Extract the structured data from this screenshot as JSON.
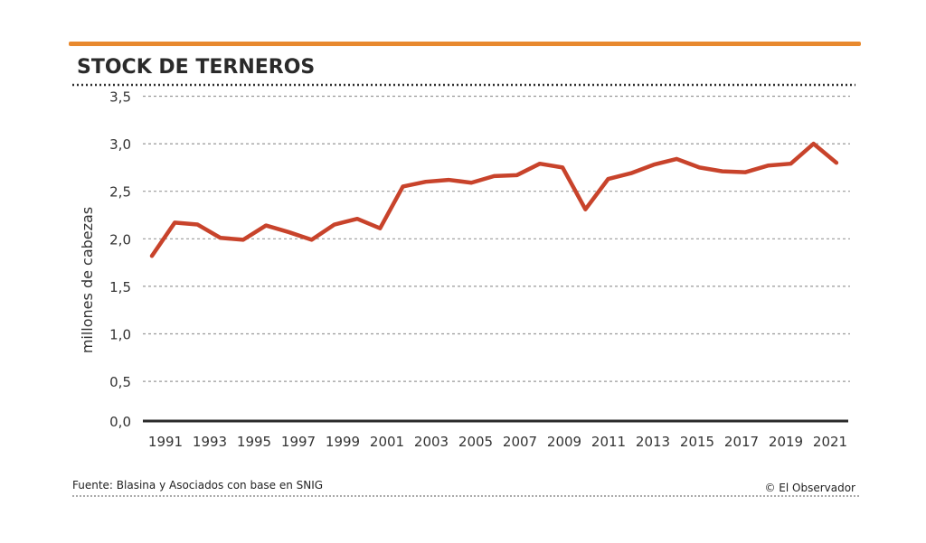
{
  "title": "STOCK DE TERNEROS",
  "source": "Fuente: Blasina y Asociados con base en SNIG",
  "credit": "© El Observador",
  "colors": {
    "accent_bar": "#e8892e",
    "line": "#c8432b",
    "text": "#2a2a2a"
  },
  "chart_data": {
    "type": "line",
    "title": "STOCK DE TERNEROS",
    "ylabel": "millones de cabezas",
    "xlabel": "",
    "ylim": [
      0,
      3.5
    ],
    "yticks": [
      "0,0",
      "0,5",
      "1,0",
      "1,5",
      "2,0",
      "2,5",
      "3,0",
      "3,5"
    ],
    "ytick_values": [
      0,
      0.5,
      1,
      1.5,
      2,
      2.5,
      3,
      3.5
    ],
    "xticks": [
      "1991",
      "1993",
      "1995",
      "1997",
      "1999",
      "2001",
      "2003",
      "2005",
      "2007",
      "2009",
      "2011",
      "2013",
      "2015",
      "2017",
      "2019",
      "2021"
    ],
    "grid": true,
    "x": [
      1991,
      1992,
      1993,
      1994,
      1995,
      1996,
      1997,
      1998,
      1999,
      2000,
      2001,
      2002,
      2003,
      2004,
      2005,
      2006,
      2007,
      2008,
      2009,
      2010,
      2011,
      2012,
      2013,
      2014,
      2015,
      2016,
      2017,
      2018,
      2019,
      2020,
      2021
    ],
    "series": [
      {
        "values": [
          1.82,
          2.17,
          2.15,
          2.01,
          1.99,
          2.14,
          2.07,
          1.99,
          2.15,
          2.21,
          2.11,
          2.55,
          2.6,
          2.62,
          2.59,
          2.66,
          2.67,
          2.79,
          2.75,
          2.31,
          2.63,
          2.69,
          2.78,
          2.84,
          2.75,
          2.71,
          2.7,
          2.77,
          2.79,
          3.0,
          2.8
        ]
      }
    ]
  }
}
